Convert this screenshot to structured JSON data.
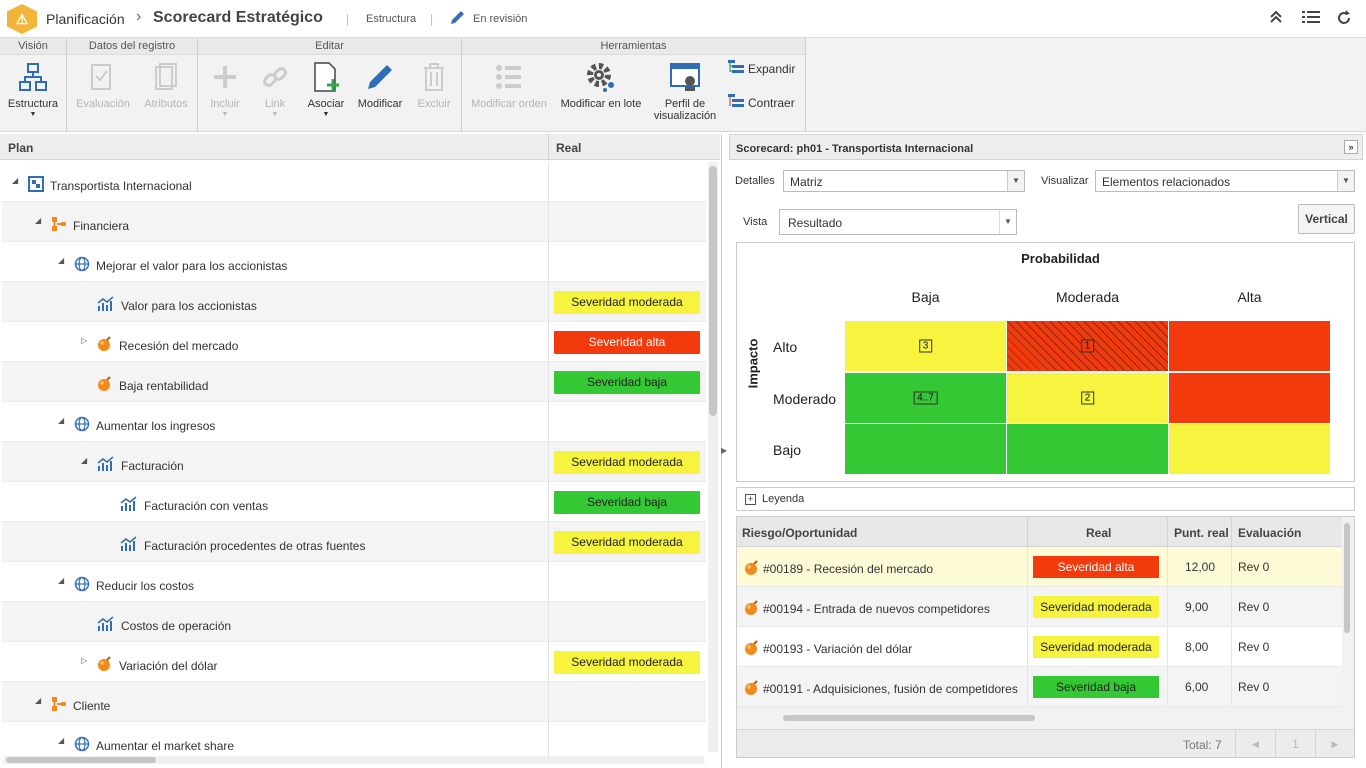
{
  "header": {
    "module": "Planificación",
    "separator": "›",
    "title": "Scorecard Estratégico",
    "view": "Estructura",
    "status": "En revisión",
    "logo_symbol": "⚠"
  },
  "ribbon": {
    "groups": [
      {
        "label": "Visión"
      },
      {
        "label": "Datos del registro"
      },
      {
        "label": "Editar"
      },
      {
        "label": "Herramientas"
      }
    ],
    "estructura": "Estructura",
    "evaluacion": "Evaluación",
    "atributos": "Atributos",
    "incluir": "Incluir",
    "link": "Link",
    "asociar": "Asociar",
    "modificar": "Modificar",
    "excluir": "Excluir",
    "modificar_orden": "Modificar orden",
    "modificar_lote": "Modificar en lote",
    "perfil_1": "Perfil de",
    "perfil_2": "visualización",
    "expandir": "Expandir",
    "contraer": "Contraer"
  },
  "tree": {
    "col_plan": "Plan",
    "col_real": "Real",
    "rows": [
      {
        "label": "Transportista Internacional",
        "badge": "",
        "icon": "scorecard-icon",
        "expand": "◢"
      },
      {
        "label": "Financiera",
        "badge": "",
        "icon": "perspective-icon",
        "expand": "◢"
      },
      {
        "label": "Mejorar el valor para los accionistas",
        "badge": "",
        "icon": "objective-icon",
        "expand": "◢"
      },
      {
        "label": "Valor para los accionistas",
        "badge": "Severidad moderada",
        "icon": "indicator-icon",
        "expand": ""
      },
      {
        "label": "Recesión del mercado",
        "badge": "Severidad alta",
        "icon": "risk-icon",
        "expand": "▷"
      },
      {
        "label": "Baja rentabilidad",
        "badge": "Severidad baja",
        "icon": "risk-icon",
        "expand": ""
      },
      {
        "label": "Aumentar los ingresos",
        "badge": "",
        "icon": "objective-icon",
        "expand": "◢"
      },
      {
        "label": "Facturación",
        "badge": "Severidad moderada",
        "icon": "indicator-icon",
        "expand": "◢"
      },
      {
        "label": "Facturación con ventas",
        "badge": "Severidad baja",
        "icon": "indicator-icon",
        "expand": ""
      },
      {
        "label": "Facturación procedentes de otras fuentes",
        "badge": "Severidad moderada",
        "icon": "indicator-icon",
        "expand": ""
      },
      {
        "label": "Reducir los costos",
        "badge": "",
        "icon": "objective-icon",
        "expand": "◢"
      },
      {
        "label": "Costos de operación",
        "badge": "",
        "icon": "indicator-icon",
        "expand": ""
      },
      {
        "label": "Variación del dólar",
        "badge": "Severidad moderada",
        "icon": "risk-icon",
        "expand": "▷"
      },
      {
        "label": "Cliente",
        "badge": "",
        "icon": "perspective-icon",
        "expand": "◢"
      },
      {
        "label": "Aumentar el market share",
        "badge": "",
        "icon": "objective-icon",
        "expand": "◢"
      }
    ]
  },
  "panel": {
    "title": "Scorecard: ph01 - Transportista Internacional",
    "detalles_label": "Detalles",
    "detalles_value": "Matriz",
    "visualizar_label": "Visualizar",
    "visualizar_value": "Elementos relacionados",
    "vista_label": "Vista",
    "vista_value": "Resultado",
    "vertical_btn": "Vertical",
    "matrix": {
      "x_title": "Probabilidad",
      "y_title": "Impacto",
      "cols": [
        "Baja",
        "Moderada",
        "Alta"
      ],
      "rows": [
        "Alto",
        "Moderado",
        "Bajo"
      ],
      "cells": [
        [
          {
            "color": "yellow",
            "count": "3"
          },
          {
            "color": "red-hatched",
            "count": "1"
          },
          {
            "color": "red",
            "count": ""
          }
        ],
        [
          {
            "color": "green",
            "count": "4..7"
          },
          {
            "color": "yellow",
            "count": "2"
          },
          {
            "color": "red",
            "count": ""
          }
        ],
        [
          {
            "color": "green",
            "count": ""
          },
          {
            "color": "green",
            "count": ""
          },
          {
            "color": "yellow",
            "count": ""
          }
        ]
      ]
    },
    "legend": "Leyenda",
    "grid": {
      "cols": [
        "Riesgo/Oportunidad",
        "Real",
        "Punt. real",
        "Evaluación"
      ],
      "rows": [
        {
          "name": "#00189 - Recesión del mercado",
          "real": "Severidad alta",
          "score": "12,00",
          "eval": "Rev 0"
        },
        {
          "name": "#00194 - Entrada de nuevos competidores",
          "real": "Severidad moderada",
          "score": "9,00",
          "eval": "Rev 0"
        },
        {
          "name": "#00193 - Variación del dólar",
          "real": "Severidad moderada",
          "score": "8,00",
          "eval": "Rev 0"
        },
        {
          "name": "#00191 - Adquisiciones, fusión de competidores",
          "real": "Severidad baja",
          "score": "6,00",
          "eval": "Rev 0"
        }
      ],
      "total": "Total: 7",
      "page": "1"
    }
  }
}
